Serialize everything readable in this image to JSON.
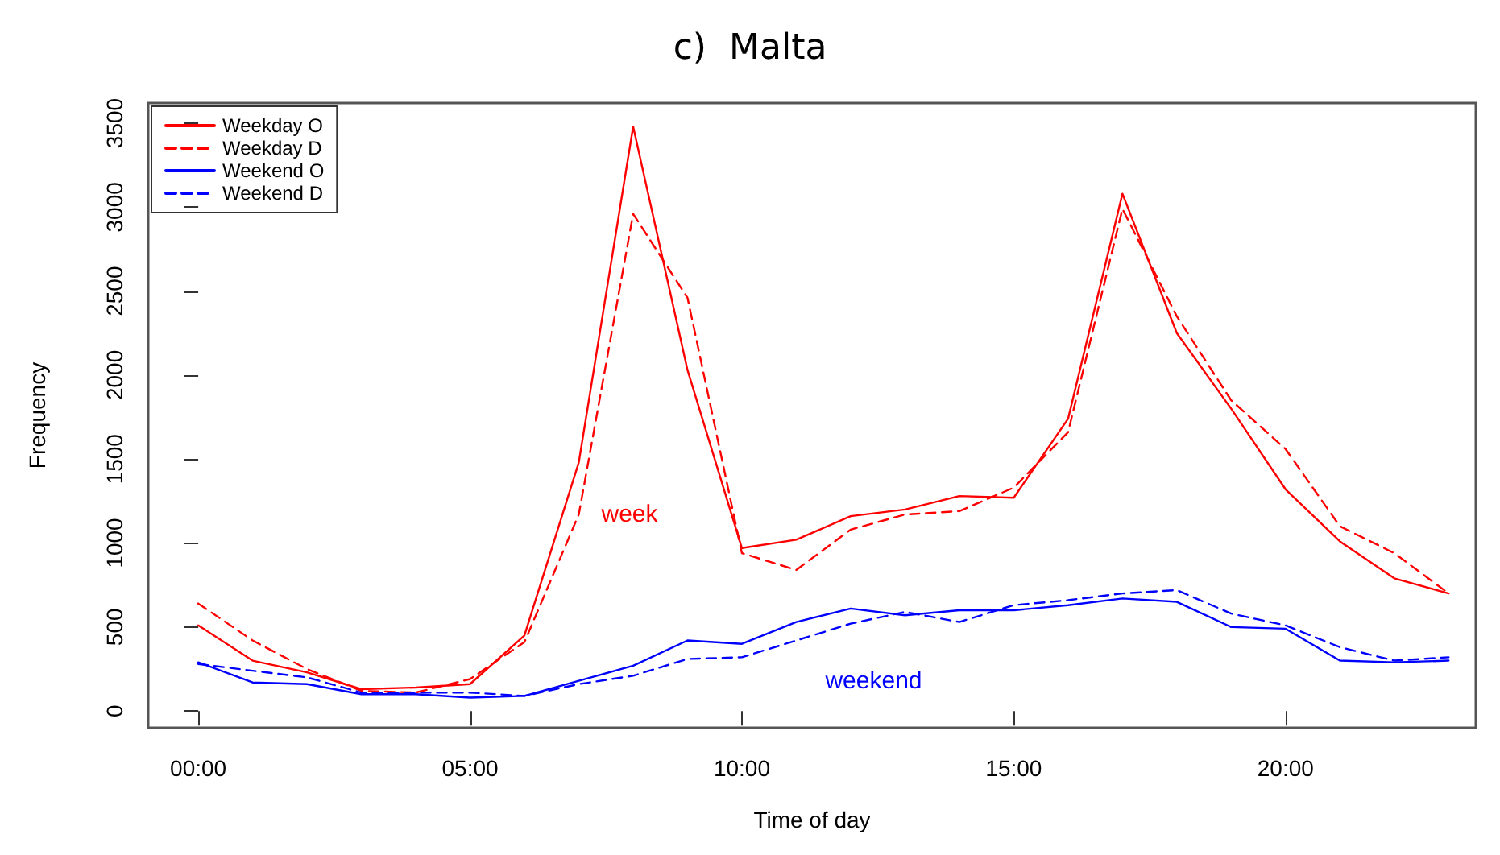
{
  "chart_data": {
    "type": "line",
    "title": "c)  Malta",
    "xlabel": "Time of day",
    "ylabel": "Frequency",
    "x": [
      0,
      1,
      2,
      3,
      4,
      5,
      6,
      7,
      8,
      9,
      10,
      11,
      12,
      13,
      14,
      15,
      16,
      17,
      18,
      19,
      20,
      21,
      22,
      23
    ],
    "series": [
      {
        "name": "Weekday O",
        "color": "#ff0000",
        "line_style": "solid",
        "values": [
          510,
          300,
          230,
          130,
          140,
          160,
          450,
          1480,
          3480,
          2030,
          970,
          1020,
          1160,
          1200,
          1280,
          1270,
          1740,
          3080,
          2250,
          1800,
          1320,
          1010,
          790,
          700
        ]
      },
      {
        "name": "Weekday D",
        "color": "#ff0000",
        "line_style": "dashed",
        "values": [
          640,
          420,
          250,
          120,
          110,
          190,
          410,
          1170,
          2960,
          2460,
          940,
          840,
          1080,
          1170,
          1190,
          1330,
          1660,
          2990,
          2350,
          1850,
          1560,
          1100,
          940,
          700
        ]
      },
      {
        "name": "Weekend O",
        "color": "#0000ff",
        "line_style": "solid",
        "values": [
          290,
          170,
          160,
          100,
          100,
          80,
          90,
          180,
          270,
          420,
          400,
          530,
          610,
          570,
          600,
          600,
          630,
          670,
          650,
          500,
          490,
          300,
          290,
          300
        ]
      },
      {
        "name": "Weekend D",
        "color": "#0000ff",
        "line_style": "dashed",
        "values": [
          280,
          240,
          200,
          110,
          110,
          110,
          90,
          160,
          210,
          310,
          320,
          420,
          520,
          590,
          530,
          630,
          660,
          700,
          720,
          580,
          510,
          380,
          300,
          320
        ]
      }
    ],
    "annotations": [
      {
        "text": "week",
        "x": 7,
        "y": 1170
      },
      {
        "text": "weekend",
        "x": 11,
        "y": 420
      }
    ],
    "xlim": [
      -0.92,
      23.5
    ],
    "ylim": [
      -100,
      3620
    ],
    "xticks": [
      {
        "value": 0,
        "label": "00:00"
      },
      {
        "value": 5,
        "label": "05:00"
      },
      {
        "value": 10,
        "label": "10:00"
      },
      {
        "value": 15,
        "label": "15:00"
      },
      {
        "value": 20,
        "label": "20:00"
      }
    ],
    "yticks": [
      0,
      500,
      1000,
      1500,
      2000,
      2500,
      3000,
      3500
    ],
    "grid": false,
    "legend": "top left",
    "marker": "none"
  }
}
